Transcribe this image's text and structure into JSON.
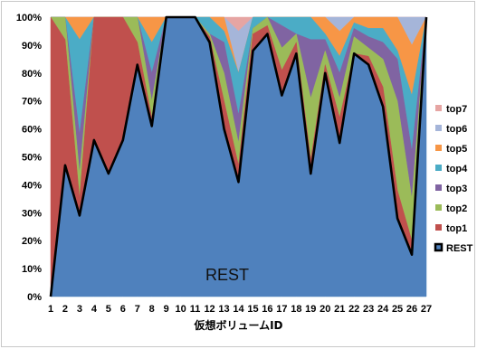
{
  "chart_data": {
    "type": "area",
    "stacked": true,
    "xlabel": "仮想ボリュームID",
    "ylabel": "",
    "ylim": [
      0,
      100
    ],
    "y_tick_labels": [
      "0%",
      "10%",
      "20%",
      "30%",
      "40%",
      "50%",
      "60%",
      "70%",
      "80%",
      "90%",
      "100%"
    ],
    "x": [
      "1",
      "2",
      "3",
      "4",
      "5",
      "6",
      "7",
      "8",
      "9",
      "10",
      "11",
      "12",
      "13",
      "14",
      "15",
      "16",
      "17",
      "18",
      "19",
      "20",
      "21",
      "22",
      "23",
      "24",
      "25",
      "26",
      "27"
    ],
    "annotation": "REST",
    "legend_position": "right",
    "series": [
      {
        "name": "REST",
        "color": "#4f81bd",
        "values": [
          0,
          47,
          29,
          56,
          44,
          56,
          83,
          61,
          100,
          100,
          100,
          91,
          60,
          41,
          88,
          94,
          72,
          87,
          44,
          80,
          55,
          87,
          83,
          68,
          28,
          15,
          100
        ]
      },
      {
        "name": "top1",
        "color": "#c0504d",
        "values": [
          100,
          45,
          6,
          44,
          56,
          44,
          8,
          3,
          0,
          0,
          0,
          2,
          10,
          6,
          6,
          3,
          9,
          4,
          5,
          3,
          9,
          0,
          3,
          7,
          10,
          5,
          0
        ]
      },
      {
        "name": "top2",
        "color": "#9bbb59",
        "values": [
          0,
          8,
          9,
          0,
          0,
          0,
          9,
          6,
          0,
          0,
          0,
          1,
          10,
          8,
          2,
          3,
          8,
          3,
          22,
          5,
          7,
          6,
          3,
          10,
          32,
          15,
          0
        ]
      },
      {
        "name": "top3",
        "color": "#8064a2",
        "values": [
          0,
          0,
          14,
          0,
          0,
          0,
          0,
          10,
          0,
          0,
          0,
          0,
          11,
          10,
          0,
          0,
          8,
          0,
          21,
          4,
          9,
          3,
          4,
          6,
          15,
          17,
          0
        ]
      },
      {
        "name": "top4",
        "color": "#4bacc6",
        "values": [
          0,
          0,
          34,
          0,
          0,
          0,
          0,
          11,
          0,
          0,
          0,
          6,
          4,
          15,
          4,
          0,
          3,
          6,
          8,
          2,
          6,
          2,
          3,
          5,
          3,
          20,
          0
        ]
      },
      {
        "name": "top5",
        "color": "#f79646",
        "values": [
          0,
          0,
          8,
          0,
          0,
          0,
          0,
          9,
          0,
          0,
          0,
          0,
          5,
          0,
          0,
          0,
          0,
          0,
          0,
          6,
          9,
          2,
          4,
          4,
          12,
          18,
          0
        ]
      },
      {
        "name": "top6",
        "color": "#a5b5d9",
        "values": [
          0,
          0,
          0,
          0,
          0,
          0,
          0,
          0,
          0,
          0,
          0,
          0,
          0,
          15,
          0,
          0,
          0,
          0,
          0,
          0,
          5,
          0,
          0,
          0,
          0,
          10,
          0
        ]
      },
      {
        "name": "top7",
        "color": "#e6a5a3",
        "values": [
          0,
          0,
          0,
          0,
          0,
          0,
          0,
          0,
          0,
          0,
          0,
          0,
          0,
          5,
          0,
          0,
          0,
          0,
          0,
          0,
          0,
          0,
          0,
          0,
          0,
          0,
          0
        ]
      }
    ]
  }
}
